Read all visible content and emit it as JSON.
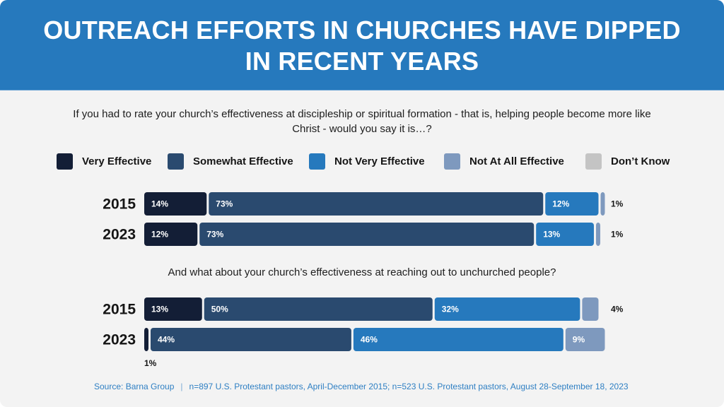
{
  "header": {
    "title": "OUTREACH EFFORTS IN CHURCHES HAVE DIPPED IN RECENT YEARS"
  },
  "legend": [
    {
      "label": "Very Effective",
      "color": "#131e36"
    },
    {
      "label": "Somewhat Effective",
      "color": "#2a4a6f"
    },
    {
      "label": "Not Very Effective",
      "color": "#2679bd"
    },
    {
      "label": "Not At All Effective",
      "color": "#7e99be"
    },
    {
      "label": "Don’t Know",
      "color": "#c4c4c4"
    }
  ],
  "chart_data": [
    {
      "type": "bar",
      "orientation": "horizontal",
      "stacked": true,
      "percent": true,
      "title": "If you had to rate your church’s effectiveness at discipleship or spiritual formation - that is, helping people become more like Christ - would you say it is…?",
      "categories": [
        "2015",
        "2023"
      ],
      "series": [
        {
          "name": "Very Effective",
          "values": [
            14,
            12
          ],
          "labels": [
            "14%",
            "12%"
          ]
        },
        {
          "name": "Somewhat Effective",
          "values": [
            73,
            73
          ],
          "labels": [
            "73%",
            "73%"
          ]
        },
        {
          "name": "Not Very Effective",
          "values": [
            12,
            13
          ],
          "labels": [
            "12%",
            "13%"
          ]
        },
        {
          "name": "Not At All Effective",
          "values": [
            1,
            1
          ],
          "labels": [
            "1%",
            "1%"
          ]
        },
        {
          "name": "Don’t Know",
          "values": [
            0,
            0
          ],
          "labels": [
            "",
            ""
          ]
        }
      ],
      "xlim": [
        0,
        100
      ],
      "grid": false,
      "legend": "top"
    },
    {
      "type": "bar",
      "orientation": "horizontal",
      "stacked": true,
      "percent": true,
      "title": "And what about your church’s effectiveness at reaching out to unchurched people?",
      "categories": [
        "2015",
        "2023"
      ],
      "series": [
        {
          "name": "Very Effective",
          "values": [
            13,
            1
          ],
          "labels": [
            "13%",
            "1%"
          ]
        },
        {
          "name": "Somewhat Effective",
          "values": [
            50,
            44
          ],
          "labels": [
            "50%",
            "44%"
          ]
        },
        {
          "name": "Not Very Effective",
          "values": [
            32,
            46
          ],
          "labels": [
            "32%",
            "46%"
          ]
        },
        {
          "name": "Not At All Effective",
          "values": [
            4,
            9
          ],
          "labels": [
            "4%",
            "9%"
          ]
        },
        {
          "name": "Don’t Know",
          "values": [
            0,
            0
          ],
          "labels": [
            "",
            ""
          ]
        }
      ],
      "xlim": [
        0,
        100
      ],
      "grid": false,
      "legend": "top"
    }
  ],
  "footer": {
    "source": "Source: Barna Group",
    "separator": "|",
    "note": "n=897 U.S. Protestant pastors, April-December 2015; n=523 U.S. Protestant pastors, August 28-September 18, 2023"
  }
}
